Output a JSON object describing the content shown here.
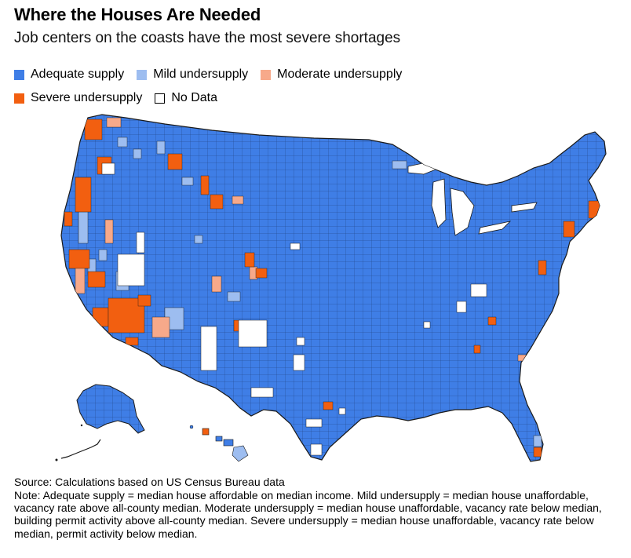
{
  "title": "Where the Houses Are Needed",
  "subtitle": "Job centers on the coasts have the most severe shortages",
  "legend": [
    {
      "label": "Adequate supply",
      "color": "#3f7ee6"
    },
    {
      "label": "Mild undersupply",
      "color": "#9dbdf0"
    },
    {
      "label": "Moderate undersupply",
      "color": "#f7a98a"
    },
    {
      "label": "Severe undersupply",
      "color": "#f25f10"
    },
    {
      "label": "No Data",
      "color": "#ffffff"
    }
  ],
  "colors": {
    "adequate": "#3f7ee6",
    "mild": "#9dbdf0",
    "moderate": "#f7a98a",
    "severe": "#f25f10",
    "nodata": "#ffffff",
    "border": "#1a1a1a"
  },
  "source": "Source: Calculations based on US Census Bureau data",
  "note": "Note: Adequate supply = median house affordable on median income. Mild undersupply = median house unaffordable, vacancy rate above all-county median. Moderate undersupply = median house unaffordable, vacancy rate below median, building permit activity above all-county median. Severe undersupply = median house unaffordable, vacancy rate below median, permit activity below median."
}
